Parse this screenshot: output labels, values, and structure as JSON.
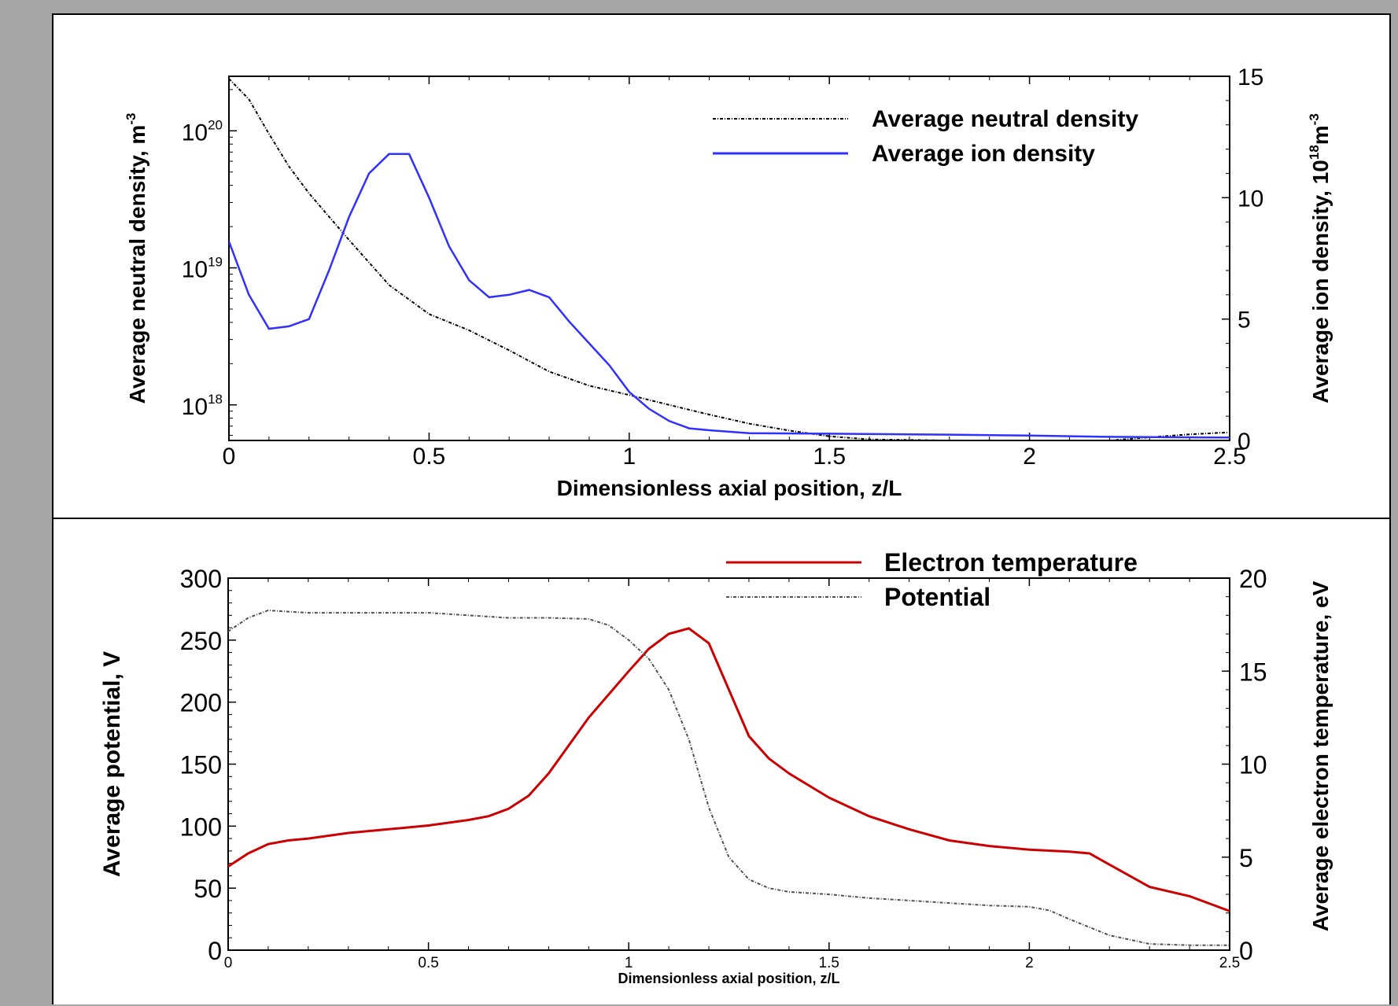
{
  "chart_data": [
    {
      "type": "line",
      "xlabel": "Dimensionless axial position, z/L",
      "ylabel_left": "Average neutral density, m",
      "ylabel_left_sup": "-3",
      "ylabel_right": "Average ion density, 10",
      "ylabel_right_sup": "18",
      "ylabel_right_unit": "m",
      "ylabel_right_unit_sup": "-3",
      "xlim": [
        0,
        2.5
      ],
      "xticks": [
        "0",
        "0.5",
        "1",
        "1.5",
        "2",
        "2.5"
      ],
      "yleft_scale": "log",
      "yleft_lim": [
        5.5e+17,
        2.5e+20
      ],
      "yleft_ticks": [
        {
          "base": "10",
          "exp": "18",
          "value": 1e+18
        },
        {
          "base": "10",
          "exp": "19",
          "value": 1e+19
        },
        {
          "base": "10",
          "exp": "20",
          "value": 1e+20
        }
      ],
      "yright_lim": [
        0,
        15
      ],
      "yright_ticks": [
        "0",
        "5",
        "10",
        "15"
      ],
      "legend_position": "top-right",
      "series": [
        {
          "name": "Average neutral density",
          "axis": "left",
          "style": "dash-dot",
          "color": "#000000",
          "x": [
            0,
            0.05,
            0.1,
            0.15,
            0.2,
            0.3,
            0.4,
            0.5,
            0.6,
            0.7,
            0.8,
            0.9,
            1.0,
            1.1,
            1.2,
            1.3,
            1.4,
            1.5,
            1.6,
            1.8,
            2.0,
            2.2,
            2.3,
            2.4,
            2.5
          ],
          "y": [
            2.4e+20,
            1.7e+20,
            9.5e+19,
            5.5e+19,
            3.5e+19,
            1.6e+19,
            7.5e+18,
            4.6e+18,
            3.5e+18,
            2.5e+18,
            1.75e+18,
            1.38e+18,
            1.18e+18,
            1e+18,
            8.5e+17,
            7.3e+17,
            6.5e+17,
            5.9e+17,
            5.6e+17,
            5.5e+17,
            5.4e+17,
            5.5e+17,
            5.8e+17,
            6.1e+17,
            6.3e+17
          ]
        },
        {
          "name": "Average ion density",
          "axis": "right",
          "style": "solid",
          "color": "#3030ff",
          "x": [
            0,
            0.05,
            0.1,
            0.15,
            0.2,
            0.25,
            0.3,
            0.35,
            0.4,
            0.45,
            0.5,
            0.55,
            0.6,
            0.65,
            0.7,
            0.75,
            0.8,
            0.85,
            0.9,
            0.95,
            1.0,
            1.05,
            1.1,
            1.15,
            1.2,
            1.3,
            1.5,
            1.8,
            2.0,
            2.2,
            2.5
          ],
          "y": [
            8.2,
            6.0,
            4.6,
            4.7,
            5.0,
            7.0,
            9.2,
            11.0,
            11.8,
            11.8,
            10.0,
            8.0,
            6.6,
            5.9,
            6.0,
            6.2,
            5.9,
            4.9,
            4.0,
            3.1,
            2.0,
            1.3,
            0.8,
            0.5,
            0.42,
            0.3,
            0.28,
            0.24,
            0.2,
            0.15,
            0.12
          ]
        }
      ]
    },
    {
      "type": "line",
      "xlabel": "Dimensionless axial position, z/L",
      "ylabel_left": "Average potential, V",
      "ylabel_right": "Average electron temperature, eV",
      "xlim": [
        0,
        2.5
      ],
      "xticks": [
        "0",
        "0.5",
        "1",
        "1.5",
        "2",
        "2.5"
      ],
      "yleft_lim": [
        0,
        300
      ],
      "yleft_ticks": [
        "0",
        "50",
        "100",
        "150",
        "200",
        "250",
        "300"
      ],
      "yright_lim": [
        0,
        20
      ],
      "yright_ticks": [
        "0",
        "5",
        "10",
        "15",
        "20"
      ],
      "legend_position": "top-right",
      "series": [
        {
          "name": "Electron temperature",
          "axis": "right",
          "style": "solid",
          "color": "#cc0000",
          "x": [
            0,
            0.05,
            0.1,
            0.15,
            0.2,
            0.3,
            0.4,
            0.5,
            0.6,
            0.65,
            0.7,
            0.75,
            0.8,
            0.9,
            1.0,
            1.05,
            1.1,
            1.15,
            1.2,
            1.25,
            1.3,
            1.35,
            1.4,
            1.5,
            1.6,
            1.7,
            1.8,
            1.9,
            2.0,
            2.1,
            2.15,
            2.2,
            2.3,
            2.4,
            2.5
          ],
          "y": [
            4.5,
            5.2,
            5.7,
            5.9,
            6.0,
            6.3,
            6.5,
            6.7,
            7.0,
            7.2,
            7.6,
            8.3,
            9.5,
            12.5,
            15.0,
            16.2,
            17.0,
            17.3,
            16.5,
            14.0,
            11.5,
            10.3,
            9.5,
            8.2,
            7.2,
            6.5,
            5.9,
            5.6,
            5.4,
            5.3,
            5.2,
            4.6,
            3.4,
            2.9,
            2.1
          ]
        },
        {
          "name": "Potential",
          "axis": "left",
          "style": "dash-dot",
          "color": "#505050",
          "x": [
            0,
            0.05,
            0.1,
            0.15,
            0.2,
            0.3,
            0.4,
            0.5,
            0.6,
            0.7,
            0.8,
            0.9,
            0.95,
            1.0,
            1.05,
            1.1,
            1.15,
            1.2,
            1.25,
            1.3,
            1.35,
            1.4,
            1.5,
            1.6,
            1.7,
            1.8,
            1.9,
            2.0,
            2.05,
            2.1,
            2.2,
            2.3,
            2.4,
            2.5
          ],
          "y": [
            257,
            268,
            274,
            273,
            272,
            272,
            272,
            272,
            270,
            268,
            268,
            267,
            262,
            250,
            235,
            210,
            170,
            115,
            75,
            57,
            50,
            47,
            45,
            42,
            40,
            38,
            36,
            35,
            32,
            25,
            12,
            5,
            4,
            4
          ]
        }
      ]
    }
  ]
}
